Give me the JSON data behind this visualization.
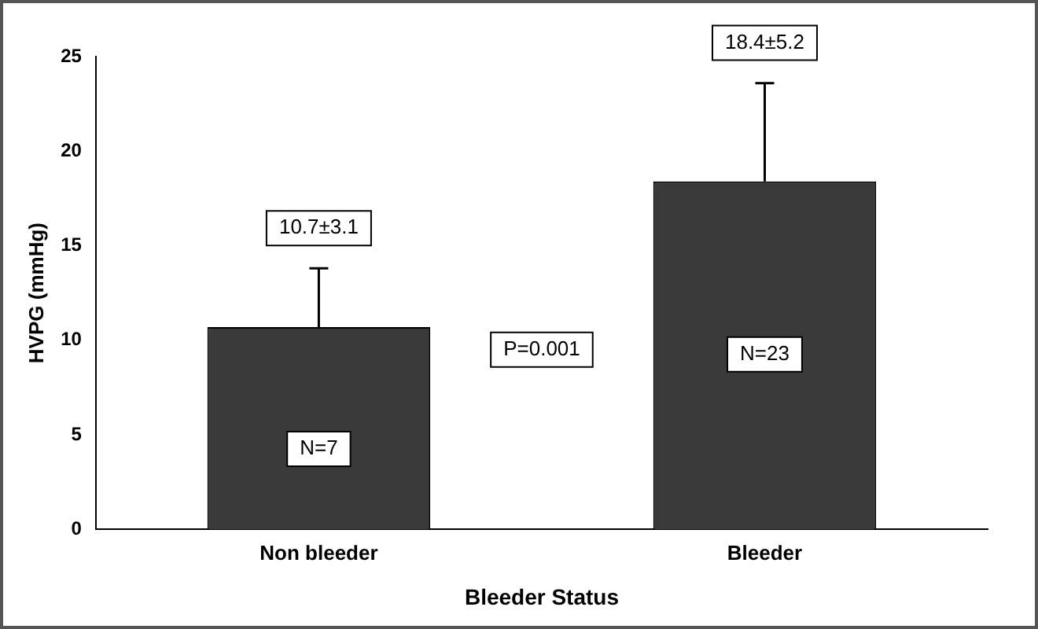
{
  "chart_data": {
    "type": "bar",
    "xlabel": "Bleeder Status",
    "ylabel": "HVPG (mmHg)",
    "categories": [
      "Non bleeder",
      "Bleeder"
    ],
    "values": [
      10.7,
      18.4
    ],
    "color": "#3a3a3a",
    "errors": [
      [
        10.7,
        13.8
      ],
      [
        18.4,
        23.6
      ]
    ],
    "annotations": [
      "10.7±3.1",
      "18.4±5.2",
      "N=7",
      "N=23",
      "P=0.001"
    ],
    "ylim": [
      0,
      25
    ],
    "yticks": [
      0,
      5,
      10,
      15,
      20,
      25
    ],
    "grid": false,
    "legend": false
  }
}
